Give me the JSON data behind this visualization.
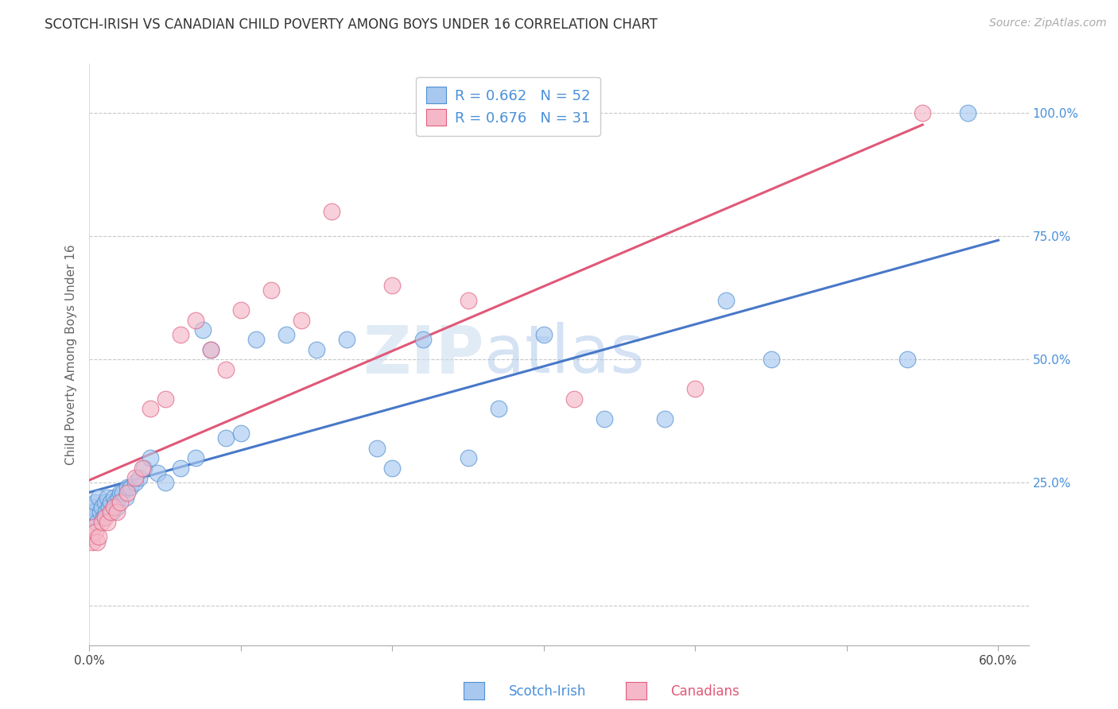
{
  "title": "SCOTCH-IRISH VS CANADIAN CHILD POVERTY AMONG BOYS UNDER 16 CORRELATION CHART",
  "source": "Source: ZipAtlas.com",
  "ylabel": "Child Poverty Among Boys Under 16",
  "xlim": [
    0.0,
    0.62
  ],
  "ylim": [
    -0.08,
    1.1
  ],
  "xticks": [
    0.0,
    0.1,
    0.2,
    0.3,
    0.4,
    0.5,
    0.6
  ],
  "xticklabels": [
    "0.0%",
    "",
    "",
    "",
    "",
    "",
    "60.0%"
  ],
  "yticks": [
    0.0,
    0.25,
    0.5,
    0.75,
    1.0
  ],
  "yticklabels": [
    "",
    "25.0%",
    "50.0%",
    "75.0%",
    "100.0%"
  ],
  "legend_blue_label": "R = 0.662   N = 52",
  "legend_pink_label": "R = 0.676   N = 31",
  "blue_fill": "#A8C8F0",
  "pink_fill": "#F5B8C8",
  "blue_edge": "#5090D0",
  "pink_edge": "#E06080",
  "blue_line": "#4878C8",
  "pink_line": "#E05878",
  "watermark_zip": "ZIP",
  "watermark_atlas": "atlas",
  "grid_color": "#C8C8C8",
  "background_color": "#FFFFFF",
  "title_fontsize": 12,
  "axis_label_fontsize": 11,
  "tick_fontsize": 11,
  "legend_fontsize": 13,
  "source_fontsize": 10,
  "scotch_irish_x": [
    0.001,
    0.002,
    0.003,
    0.004,
    0.005,
    0.006,
    0.007,
    0.008,
    0.009,
    0.01,
    0.011,
    0.012,
    0.013,
    0.014,
    0.015,
    0.016,
    0.017,
    0.018,
    0.019,
    0.02,
    0.022,
    0.024,
    0.025,
    0.027,
    0.03,
    0.033,
    0.036,
    0.04,
    0.045,
    0.05,
    0.06,
    0.07,
    0.075,
    0.08,
    0.09,
    0.1,
    0.11,
    0.13,
    0.15,
    0.17,
    0.19,
    0.2,
    0.22,
    0.25,
    0.27,
    0.3,
    0.34,
    0.38,
    0.42,
    0.45,
    0.54,
    0.58
  ],
  "scotch_irish_y": [
    0.18,
    0.2,
    0.19,
    0.21,
    0.17,
    0.22,
    0.19,
    0.2,
    0.18,
    0.21,
    0.19,
    0.22,
    0.2,
    0.21,
    0.19,
    0.22,
    0.21,
    0.2,
    0.22,
    0.23,
    0.23,
    0.22,
    0.24,
    0.24,
    0.25,
    0.26,
    0.28,
    0.3,
    0.27,
    0.25,
    0.28,
    0.3,
    0.56,
    0.52,
    0.34,
    0.35,
    0.54,
    0.55,
    0.52,
    0.54,
    0.32,
    0.28,
    0.54,
    0.3,
    0.4,
    0.55,
    0.38,
    0.38,
    0.62,
    0.5,
    0.5,
    1.0
  ],
  "canadians_x": [
    0.001,
    0.002,
    0.003,
    0.004,
    0.005,
    0.006,
    0.008,
    0.01,
    0.012,
    0.014,
    0.016,
    0.018,
    0.02,
    0.025,
    0.03,
    0.035,
    0.04,
    0.05,
    0.06,
    0.07,
    0.08,
    0.09,
    0.1,
    0.12,
    0.14,
    0.16,
    0.2,
    0.25,
    0.32,
    0.4,
    0.55
  ],
  "canadians_y": [
    0.14,
    0.13,
    0.16,
    0.15,
    0.13,
    0.14,
    0.17,
    0.18,
    0.17,
    0.19,
    0.2,
    0.19,
    0.21,
    0.23,
    0.26,
    0.28,
    0.4,
    0.42,
    0.55,
    0.58,
    0.52,
    0.48,
    0.6,
    0.64,
    0.58,
    0.8,
    0.65,
    0.62,
    0.42,
    0.44,
    1.0
  ]
}
